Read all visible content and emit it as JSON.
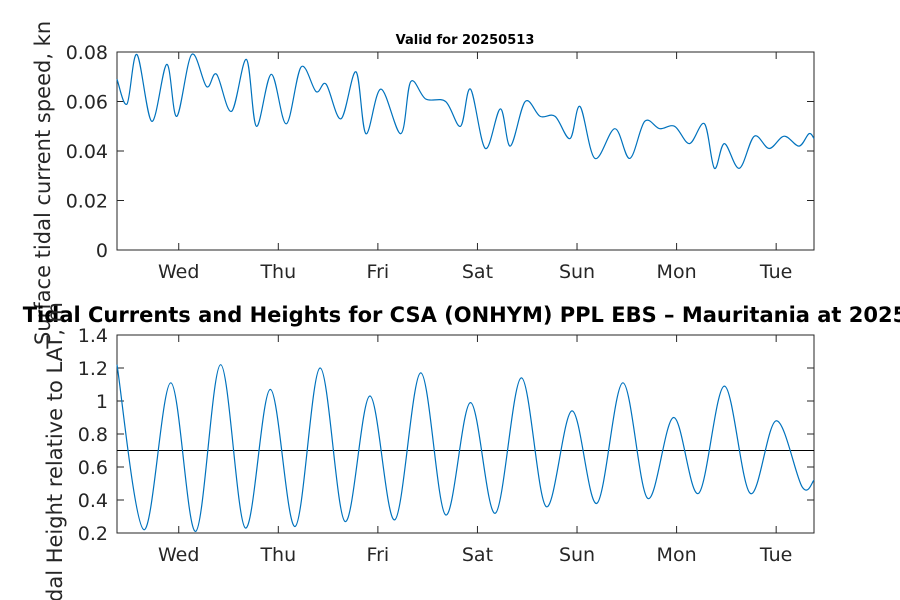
{
  "chart_data": [
    {
      "type": "line",
      "title": "Valid for 20250513",
      "ylabel": "Surface tidal current speed, kn",
      "xlabel": "",
      "ylim": [
        0,
        0.08
      ],
      "y_ticks": [
        "0",
        "0.02",
        "0.04",
        "0.06",
        "0.08"
      ],
      "y_tick_values": [
        0,
        0.02,
        0.04,
        0.06,
        0.08
      ],
      "x_range_days": [
        0,
        7
      ],
      "x_ticks": [
        "Wed",
        "Thu",
        "Fri",
        "Sat",
        "Sun",
        "Mon",
        "Tue"
      ],
      "x_tick_values": [
        0.62,
        1.62,
        2.62,
        3.62,
        4.62,
        5.62,
        6.62
      ],
      "grid": false,
      "series": [
        {
          "color": "#0072BD",
          "x": [
            0.0,
            0.1,
            0.2,
            0.35,
            0.5,
            0.6,
            0.75,
            0.9,
            1.0,
            1.15,
            1.3,
            1.4,
            1.55,
            1.7,
            1.85,
            2.0,
            2.1,
            2.25,
            2.4,
            2.5,
            2.65,
            2.85,
            2.95,
            3.1,
            3.3,
            3.45,
            3.55,
            3.7,
            3.85,
            3.95,
            4.1,
            4.25,
            4.4,
            4.55,
            4.65,
            4.8,
            5.0,
            5.15,
            5.3,
            5.45,
            5.6,
            5.75,
            5.9,
            6.0,
            6.1,
            6.25,
            6.4,
            6.55,
            6.7,
            6.85,
            6.95,
            7.0
          ],
          "y": [
            0.069,
            0.059,
            0.079,
            0.052,
            0.075,
            0.054,
            0.079,
            0.066,
            0.071,
            0.056,
            0.077,
            0.05,
            0.071,
            0.051,
            0.074,
            0.064,
            0.067,
            0.053,
            0.072,
            0.047,
            0.065,
            0.047,
            0.068,
            0.061,
            0.06,
            0.05,
            0.065,
            0.041,
            0.057,
            0.042,
            0.06,
            0.054,
            0.054,
            0.045,
            0.058,
            0.037,
            0.049,
            0.037,
            0.052,
            0.049,
            0.05,
            0.043,
            0.051,
            0.033,
            0.043,
            0.033,
            0.046,
            0.041,
            0.046,
            0.042,
            0.047,
            0.045
          ]
        }
      ]
    },
    {
      "type": "line",
      "title": "Tidal Currents and Heights for CSA (ONHYM) PPL EBS  – Mauritania at 2025",
      "ylabel": "Tidal Height relative to LAT, m",
      "xlabel": "",
      "ylim": [
        0.2,
        1.4
      ],
      "y_ticks": [
        "0.2",
        "0.4",
        "0.6",
        "0.8",
        "1",
        "1.2",
        "1.4"
      ],
      "y_tick_values": [
        0.2,
        0.4,
        0.6,
        0.8,
        1.0,
        1.2,
        1.4
      ],
      "x_range_days": [
        0,
        7
      ],
      "x_ticks": [
        "Wed",
        "Thu",
        "Fri",
        "Sat",
        "Sun",
        "Mon",
        "Tue"
      ],
      "x_tick_values": [
        0.62,
        1.62,
        2.62,
        3.62,
        4.62,
        5.62,
        6.62
      ],
      "grid": false,
      "reference_line": 0.7,
      "series": [
        {
          "color": "#0072BD",
          "x": [
            0.0,
            0.27,
            0.54,
            0.79,
            1.04,
            1.29,
            1.54,
            1.79,
            2.04,
            2.29,
            2.54,
            2.79,
            3.05,
            3.3,
            3.55,
            3.8,
            4.06,
            4.31,
            4.57,
            4.82,
            5.08,
            5.33,
            5.59,
            5.84,
            6.1,
            6.36,
            6.62,
            6.88,
            7.0
          ],
          "y": [
            1.22,
            0.22,
            1.11,
            0.21,
            1.22,
            0.23,
            1.07,
            0.24,
            1.2,
            0.27,
            1.03,
            0.28,
            1.17,
            0.31,
            0.99,
            0.32,
            1.14,
            0.36,
            0.94,
            0.38,
            1.11,
            0.41,
            0.9,
            0.44,
            1.09,
            0.44,
            0.88,
            0.48,
            0.52
          ]
        }
      ]
    }
  ]
}
